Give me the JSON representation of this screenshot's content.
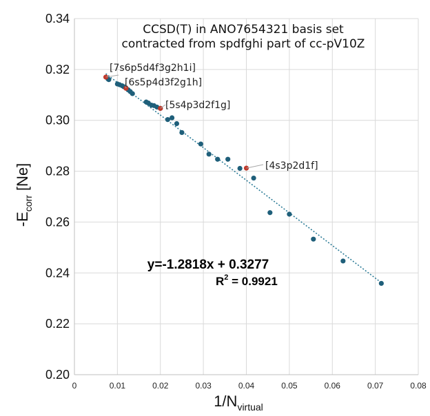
{
  "chart_data": {
    "type": "scatter",
    "title_lines": [
      "CCSD(T) in ANO7654321 basis set",
      "contracted from spdfghi part of cc-pV10Z"
    ],
    "xlabel": {
      "main": "1/N",
      "sub": "virtual"
    },
    "ylabel": {
      "prefix": "-E",
      "sub": "corr",
      "suffix": " [Ne]"
    },
    "xlim": [
      0,
      0.08
    ],
    "ylim": [
      0.2,
      0.34
    ],
    "x_ticks": [
      "0",
      "0.01",
      "0.02",
      "0.03",
      "0.04",
      "0.05",
      "0.06",
      "0.07",
      "0.08"
    ],
    "y_ticks": [
      "0.20",
      "0.22",
      "0.24",
      "0.26",
      "0.28",
      "0.30",
      "0.32",
      "0.34"
    ],
    "grid": {
      "horizontal": true,
      "vertical": true
    },
    "point_color": "#1f5f7a",
    "highlight_color": "#c0392b",
    "trendline_color": "#2a7a96",
    "series": [
      {
        "x": [
          0.0714,
          0.0625,
          0.0556,
          0.05,
          0.0455,
          0.0417,
          0.0385,
          0.0357,
          0.0333,
          0.0313,
          0.0294,
          0.025,
          0.0238,
          0.0227,
          0.0217,
          0.02,
          0.0192,
          0.0185,
          0.0179,
          0.0172,
          0.0167,
          0.0135,
          0.013,
          0.0125,
          0.012,
          0.0115,
          0.0111,
          0.0105,
          0.01,
          0.008,
          0.0078
        ],
        "y": [
          0.2359,
          0.2447,
          0.2533,
          0.2631,
          0.2637,
          0.2773,
          0.2811,
          0.2847,
          0.2847,
          0.2867,
          0.2907,
          0.2952,
          0.2987,
          0.301,
          0.3003,
          0.3047,
          0.3052,
          0.3058,
          0.306,
          0.3068,
          0.3072,
          0.3105,
          0.3113,
          0.312,
          0.3127,
          0.3132,
          0.3136,
          0.314,
          0.3143,
          0.316,
          0.3163
        ]
      }
    ],
    "highlights": [
      {
        "label": "[7s6p5d4f3g2h1i]",
        "x": 0.0073,
        "y": 0.317
      },
      {
        "label": "[6s5p4d3f2g1h]",
        "x": 0.012,
        "y": 0.3126
      },
      {
        "label": "[5s4p3d2f1g]",
        "x": 0.02,
        "y": 0.3047
      },
      {
        "label": "[4s3p2d1f]",
        "x": 0.04,
        "y": 0.2812
      }
    ],
    "trendline": {
      "slope": -1.2818,
      "intercept": 0.3277,
      "x_range": [
        0.0073,
        0.0714
      ]
    },
    "equation": "y=-1.2818x + 0.3277",
    "r2": {
      "prefix": "R",
      "sup": "2",
      "suffix": " = 0.9921"
    }
  }
}
